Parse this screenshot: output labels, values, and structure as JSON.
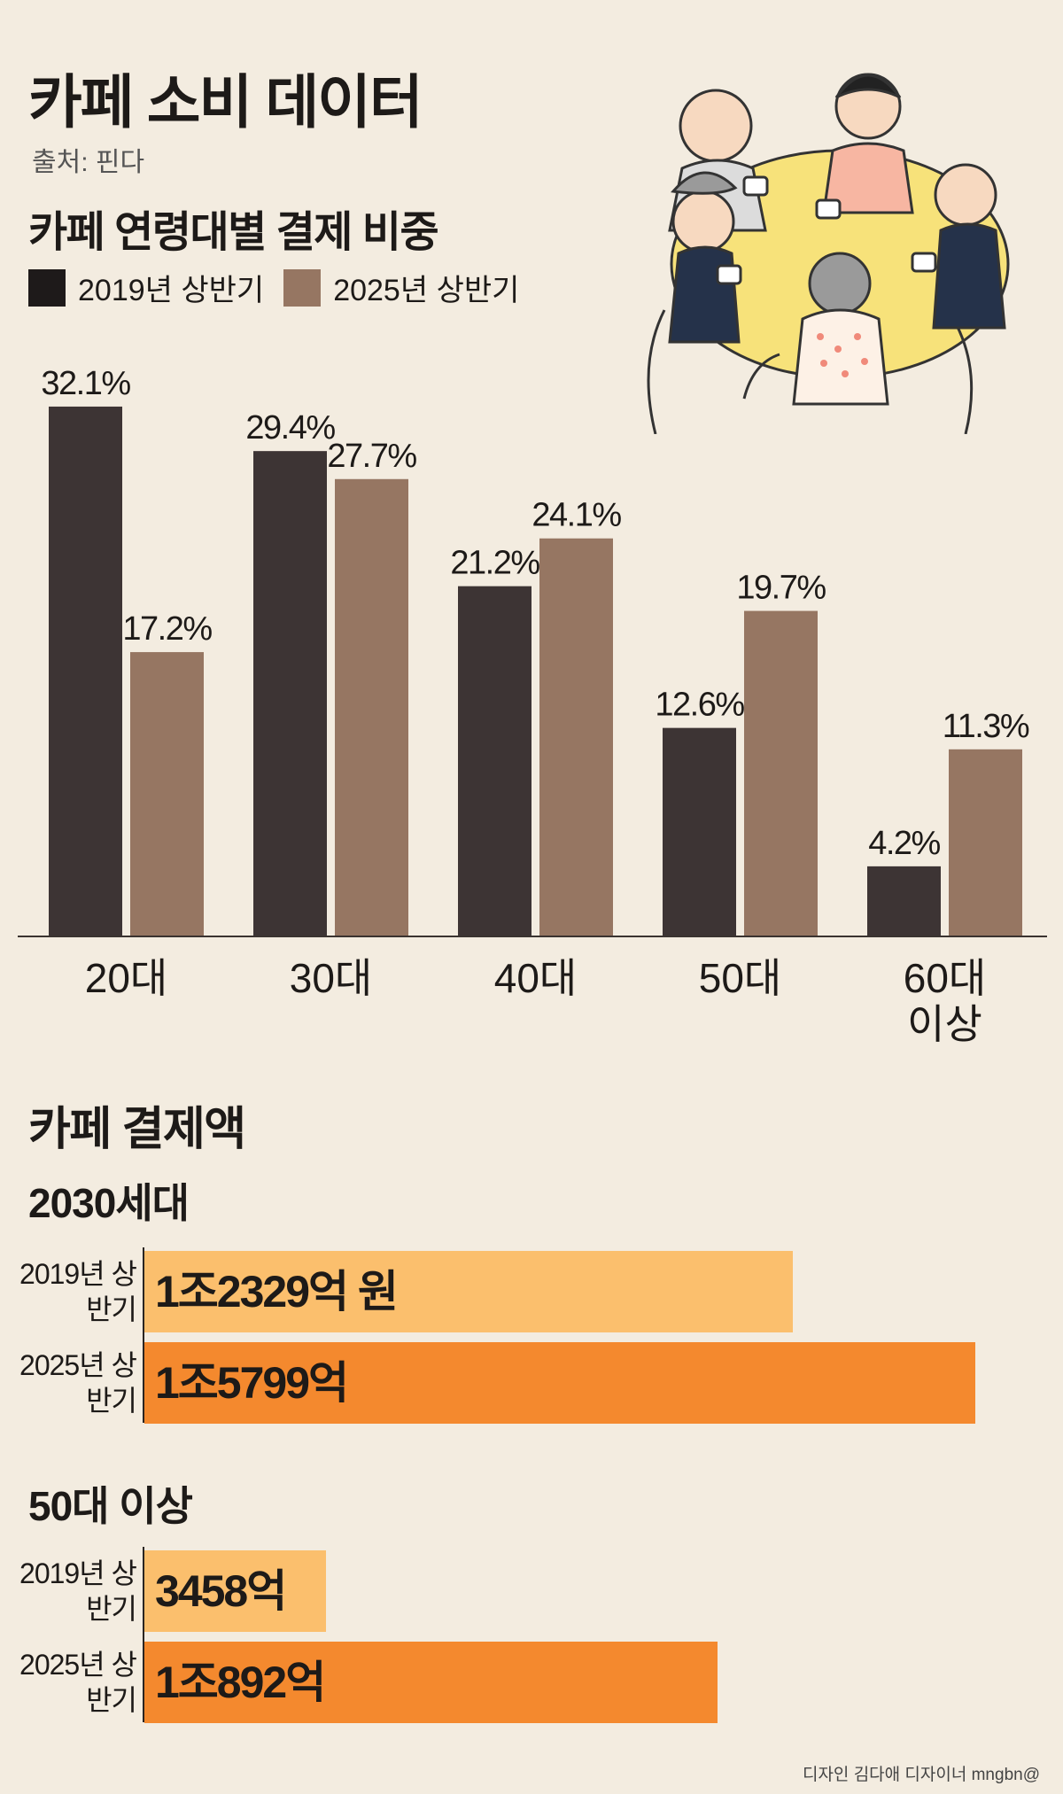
{
  "title": "카페 소비 데이터",
  "source": "출처: 핀다",
  "chart_data": [
    {
      "type": "bar",
      "title": "카페 연령대별 결제 비중",
      "categories": [
        "20대",
        "30대",
        "40대",
        "50대",
        "60대 이상"
      ],
      "series": [
        {
          "name": "2019년 상반기",
          "values": [
            32.1,
            29.4,
            21.2,
            12.6,
            4.2
          ],
          "labels": [
            "32.1%",
            "29.4%",
            "21.2%",
            "12.6%",
            "4.2%"
          ],
          "color": "#3d3434"
        },
        {
          "name": "2025년 상반기",
          "values": [
            17.2,
            27.7,
            24.1,
            19.7,
            11.3
          ],
          "labels": [
            "17.2%",
            "27.7%",
            "24.1%",
            "19.7%",
            "11.3%"
          ],
          "color": "#967662"
        }
      ],
      "ylim": [
        0,
        35
      ],
      "grid": false,
      "legend": "top-left"
    },
    {
      "type": "bar",
      "orientation": "horizontal",
      "title": "카페 결제액",
      "groups": [
        {
          "name": "2030세대",
          "rows": [
            {
              "period": "2019년 상반기",
              "value": 12329,
              "label": "1조2329억 원",
              "color": "#fbbf6d"
            },
            {
              "period": "2025년 상반기",
              "value": 15799,
              "label": "1조5799억",
              "color": "#f4892e"
            }
          ]
        },
        {
          "name": "50대 이상",
          "rows": [
            {
              "period": "2019년 상반기",
              "value": 3458,
              "label": "3458억",
              "color": "#fbbf6d"
            },
            {
              "period": "2025년 상반기",
              "value": 10892,
              "label": "1조892억",
              "color": "#f4892e"
            }
          ]
        }
      ]
    }
  ],
  "credit": "디자인 김다애 디자이너 mngbn@"
}
